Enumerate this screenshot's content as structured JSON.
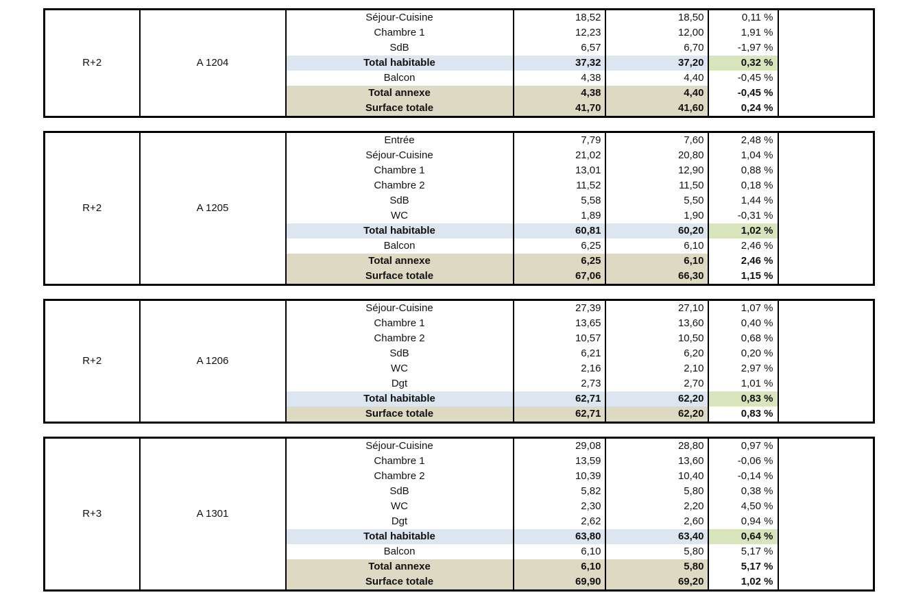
{
  "colors": {
    "total_habitable_fill": "#DCE6F1",
    "total_habitable_pct_fill": "#D7E4BC",
    "total_annexe_fill": "#DDD9C3",
    "border": "#000000",
    "page_background": "#FFFFFF"
  },
  "blocks": [
    {
      "floor": "R+2",
      "unit": "A 1204",
      "rows": [
        {
          "label": "Séjour-Cuisine",
          "v1": "18,52",
          "v2": "18,50",
          "pct": "0,11 %",
          "type": "normal"
        },
        {
          "label": "Chambre 1",
          "v1": "12,23",
          "v2": "12,00",
          "pct": "1,91 %",
          "type": "normal"
        },
        {
          "label": "SdB",
          "v1": "6,57",
          "v2": "6,70",
          "pct": "-1,97 %",
          "type": "normal"
        },
        {
          "label": "Total habitable",
          "v1": "37,32",
          "v2": "37,20",
          "pct": "0,32 %",
          "type": "habitable"
        },
        {
          "label": "Balcon",
          "v1": "4,38",
          "v2": "4,40",
          "pct": "-0,45 %",
          "type": "normal"
        },
        {
          "label": "Total annexe",
          "v1": "4,38",
          "v2": "4,40",
          "pct": "-0,45 %",
          "type": "annexe"
        },
        {
          "label": "Surface totale",
          "v1": "41,70",
          "v2": "41,60",
          "pct": "0,24 %",
          "type": "total"
        }
      ]
    },
    {
      "floor": "R+2",
      "unit": "A 1205",
      "rows": [
        {
          "label": "Entrée",
          "v1": "7,79",
          "v2": "7,60",
          "pct": "2,48 %",
          "type": "normal"
        },
        {
          "label": "Séjour-Cuisine",
          "v1": "21,02",
          "v2": "20,80",
          "pct": "1,04 %",
          "type": "normal"
        },
        {
          "label": "Chambre 1",
          "v1": "13,01",
          "v2": "12,90",
          "pct": "0,88 %",
          "type": "normal"
        },
        {
          "label": "Chambre 2",
          "v1": "11,52",
          "v2": "11,50",
          "pct": "0,18 %",
          "type": "normal"
        },
        {
          "label": "SdB",
          "v1": "5,58",
          "v2": "5,50",
          "pct": "1,44 %",
          "type": "normal"
        },
        {
          "label": "WC",
          "v1": "1,89",
          "v2": "1,90",
          "pct": "-0,31 %",
          "type": "normal"
        },
        {
          "label": "Total habitable",
          "v1": "60,81",
          "v2": "60,20",
          "pct": "1,02 %",
          "type": "habitable"
        },
        {
          "label": "Balcon",
          "v1": "6,25",
          "v2": "6,10",
          "pct": "2,46 %",
          "type": "normal"
        },
        {
          "label": "Total annexe",
          "v1": "6,25",
          "v2": "6,10",
          "pct": "2,46 %",
          "type": "annexe"
        },
        {
          "label": "Surface totale",
          "v1": "67,06",
          "v2": "66,30",
          "pct": "1,15 %",
          "type": "total"
        }
      ]
    },
    {
      "floor": "R+2",
      "unit": "A 1206",
      "rows": [
        {
          "label": "Séjour-Cuisine",
          "v1": "27,39",
          "v2": "27,10",
          "pct": "1,07 %",
          "type": "normal"
        },
        {
          "label": "Chambre 1",
          "v1": "13,65",
          "v2": "13,60",
          "pct": "0,40 %",
          "type": "normal"
        },
        {
          "label": "Chambre 2",
          "v1": "10,57",
          "v2": "10,50",
          "pct": "0,68 %",
          "type": "normal"
        },
        {
          "label": "SdB",
          "v1": "6,21",
          "v2": "6,20",
          "pct": "0,20 %",
          "type": "normal"
        },
        {
          "label": "WC",
          "v1": "2,16",
          "v2": "2,10",
          "pct": "2,97 %",
          "type": "normal"
        },
        {
          "label": "Dgt",
          "v1": "2,73",
          "v2": "2,70",
          "pct": "1,01 %",
          "type": "normal"
        },
        {
          "label": "Total habitable",
          "v1": "62,71",
          "v2": "62,20",
          "pct": "0,83 %",
          "type": "habitable"
        },
        {
          "label": "Surface totale",
          "v1": "62,71",
          "v2": "62,20",
          "pct": "0,83 %",
          "type": "total"
        }
      ]
    },
    {
      "floor": "R+3",
      "unit": "A 1301",
      "rows": [
        {
          "label": "Séjour-Cuisine",
          "v1": "29,08",
          "v2": "28,80",
          "pct": "0,97 %",
          "type": "normal"
        },
        {
          "label": "Chambre 1",
          "v1": "13,59",
          "v2": "13,60",
          "pct": "-0,06 %",
          "type": "normal"
        },
        {
          "label": "Chambre 2",
          "v1": "10,39",
          "v2": "10,40",
          "pct": "-0,14 %",
          "type": "normal"
        },
        {
          "label": "SdB",
          "v1": "5,82",
          "v2": "5,80",
          "pct": "0,38 %",
          "type": "normal"
        },
        {
          "label": "WC",
          "v1": "2,30",
          "v2": "2,20",
          "pct": "4,50 %",
          "type": "normal"
        },
        {
          "label": "Dgt",
          "v1": "2,62",
          "v2": "2,60",
          "pct": "0,94 %",
          "type": "normal"
        },
        {
          "label": "Total habitable",
          "v1": "63,80",
          "v2": "63,40",
          "pct": "0,64 %",
          "type": "habitable"
        },
        {
          "label": "Balcon",
          "v1": "6,10",
          "v2": "5,80",
          "pct": "5,17 %",
          "type": "normal"
        },
        {
          "label": "Total annexe",
          "v1": "6,10",
          "v2": "5,80",
          "pct": "5,17 %",
          "type": "annexe"
        },
        {
          "label": "Surface totale",
          "v1": "69,90",
          "v2": "69,20",
          "pct": "1,02 %",
          "type": "total"
        }
      ]
    }
  ]
}
